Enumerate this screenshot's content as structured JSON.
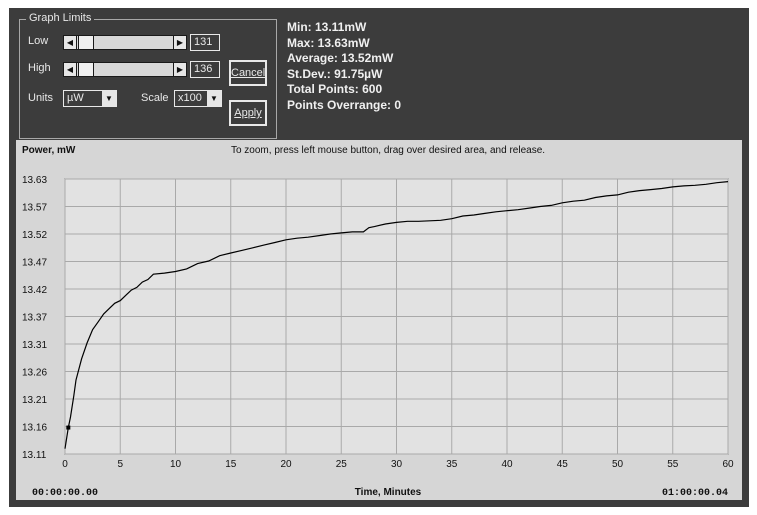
{
  "graph_limits": {
    "title": "Graph Limits",
    "low": {
      "label": "Low",
      "value": "131"
    },
    "high": {
      "label": "High",
      "value": "136"
    },
    "cancel_label": "Cancel",
    "apply_label": "Apply",
    "units": {
      "label": "Units",
      "value": "µW"
    },
    "scale": {
      "label": "Scale",
      "value": "x100"
    }
  },
  "stats": {
    "min": "Min: 13.11mW",
    "max": "Max: 13.63mW",
    "average": "Average: 13.52mW",
    "stdev": "St.Dev.: 91.75µW",
    "total_points": "Total Points: 600",
    "points_overrange": "Points Overrange: 0"
  },
  "chart": {
    "instruction": "To zoom, press left mouse button, drag over desired area, and release.",
    "start_time": "00:00:00.00",
    "end_time": "01:00:00.04"
  },
  "chart_data": {
    "type": "line",
    "ylabel": "Power, mW",
    "xlabel": "Time, Minutes",
    "xlim": [
      0,
      60
    ],
    "ylim": [
      13.11,
      13.63
    ],
    "xticks": [
      "0",
      "5",
      "10",
      "15",
      "20",
      "25",
      "30",
      "35",
      "40",
      "45",
      "50",
      "55",
      "60"
    ],
    "yticks": [
      "13.63",
      "13.57",
      "13.52",
      "13.47",
      "13.42",
      "13.37",
      "13.31",
      "13.26",
      "13.21",
      "13.16",
      "13.11"
    ],
    "grid": true,
    "series": [
      {
        "color": "#000000",
        "x": [
          0,
          0.3,
          0.5,
          0.8,
          1,
          1.5,
          2,
          2.5,
          3,
          3.5,
          4,
          4.5,
          5,
          5.5,
          6,
          6.5,
          7,
          7.5,
          8,
          9,
          10,
          11,
          12,
          13,
          14,
          15,
          16,
          17,
          18,
          19,
          20,
          21,
          22,
          23,
          24,
          25,
          26,
          27,
          27.5,
          28,
          29,
          30,
          31,
          32,
          33,
          34,
          35,
          36,
          37,
          38,
          39,
          40,
          41,
          42,
          43,
          44,
          45,
          46,
          47,
          48,
          49,
          50,
          51,
          52,
          53,
          54,
          55,
          56,
          57,
          58,
          59,
          60
        ],
        "y": [
          13.12,
          13.16,
          13.18,
          13.22,
          13.25,
          13.29,
          13.32,
          13.345,
          13.36,
          13.375,
          13.385,
          13.395,
          13.4,
          13.41,
          13.42,
          13.425,
          13.435,
          13.44,
          13.45,
          13.452,
          13.455,
          13.46,
          13.47,
          13.475,
          13.485,
          13.49,
          13.495,
          13.5,
          13.505,
          13.51,
          13.515,
          13.518,
          13.52,
          13.523,
          13.526,
          13.528,
          13.53,
          13.53,
          13.538,
          13.54,
          13.545,
          13.548,
          13.55,
          13.55,
          13.551,
          13.552,
          13.555,
          13.56,
          13.562,
          13.565,
          13.568,
          13.57,
          13.572,
          13.575,
          13.578,
          13.58,
          13.585,
          13.588,
          13.59,
          13.595,
          13.598,
          13.6,
          13.605,
          13.608,
          13.61,
          13.612,
          13.615,
          13.617,
          13.618,
          13.62,
          13.623,
          13.625
        ]
      }
    ]
  }
}
